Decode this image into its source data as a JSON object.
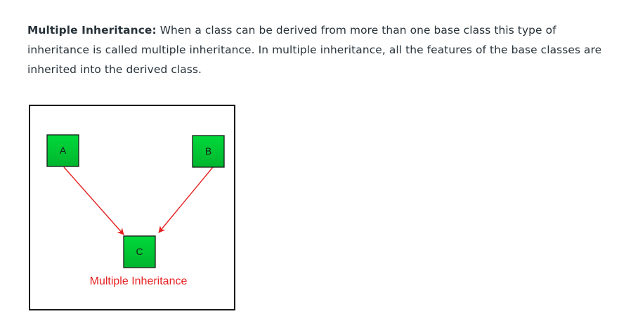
{
  "paragraph": {
    "term": "Multiple Inheritance:",
    "text": " When a class can be derived from more than one base class this type of inheritance is called multiple inheritance. In multiple inheritance, all the features of the base classes are inherited into the derived class."
  },
  "diagram": {
    "nodes": {
      "a": "A",
      "b": "B",
      "c": "C"
    },
    "caption": "Multiple Inheritance",
    "colors": {
      "node_fill_top": "#00d93a",
      "node_fill_bottom": "#00b52e",
      "node_border": "#1a1a1a",
      "arrow": "#e52020",
      "caption": "#e52020"
    }
  }
}
